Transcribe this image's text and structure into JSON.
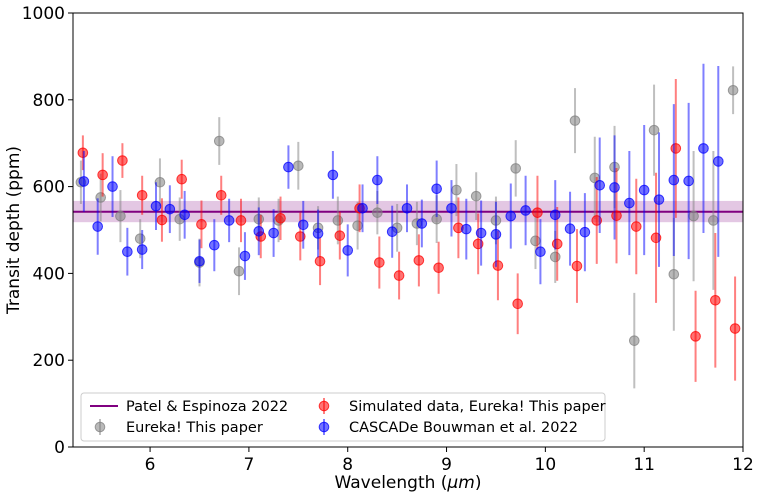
{
  "chart_data": {
    "type": "scatter",
    "xlabel": "Wavelength (",
    "xlabel_unit": "μm",
    "xlabel_close": ")",
    "ylabel": "Transit depth (ppm)",
    "xlim": [
      5.22,
      12.0
    ],
    "ylim": [
      0,
      1000
    ],
    "xticks": [
      6,
      7,
      8,
      9,
      10,
      11,
      12
    ],
    "yticks": [
      0,
      200,
      400,
      600,
      800,
      1000
    ],
    "grid": false,
    "legend_position": "lower-left",
    "reference_band": {
      "name": "Patel & Espinoza 2022",
      "value": 542,
      "lower": 518,
      "upper": 567,
      "color": "#800080"
    },
    "series": [
      {
        "name": "Eureka! This paper",
        "color": "#808080",
        "points": [
          [
            5.3,
            610,
            50
          ],
          [
            5.5,
            575,
            55
          ],
          [
            5.7,
            532,
            60
          ],
          [
            5.9,
            480,
            45
          ],
          [
            6.1,
            610,
            55
          ],
          [
            6.3,
            525,
            50
          ],
          [
            6.5,
            425,
            55
          ],
          [
            6.7,
            705,
            55
          ],
          [
            6.9,
            405,
            55
          ],
          [
            7.1,
            525,
            50
          ],
          [
            7.3,
            522,
            50
          ],
          [
            7.5,
            648,
            55
          ],
          [
            7.7,
            505,
            50
          ],
          [
            7.9,
            522,
            55
          ],
          [
            8.1,
            510,
            55
          ],
          [
            8.3,
            540,
            50
          ],
          [
            8.5,
            505,
            55
          ],
          [
            8.7,
            515,
            50
          ],
          [
            8.9,
            525,
            55
          ],
          [
            9.1,
            592,
            60
          ],
          [
            9.3,
            578,
            55
          ],
          [
            9.5,
            522,
            55
          ],
          [
            9.7,
            642,
            65
          ],
          [
            9.9,
            475,
            65
          ],
          [
            10.1,
            438,
            60
          ],
          [
            10.3,
            752,
            75
          ],
          [
            10.5,
            620,
            95
          ],
          [
            10.7,
            645,
            95
          ],
          [
            10.9,
            245,
            110
          ],
          [
            11.1,
            730,
            105
          ],
          [
            11.3,
            398,
            130
          ],
          [
            11.5,
            532,
            150
          ],
          [
            11.7,
            522,
            160
          ],
          [
            11.9,
            822,
            55
          ]
        ]
      },
      {
        "name": "Simulated data, Eureka! This paper",
        "color": "#ff0000",
        "points": [
          [
            5.32,
            678,
            40
          ],
          [
            5.52,
            627,
            50
          ],
          [
            5.72,
            660,
            40
          ],
          [
            5.92,
            580,
            45
          ],
          [
            6.12,
            523,
            50
          ],
          [
            6.32,
            617,
            45
          ],
          [
            6.52,
            513,
            55
          ],
          [
            6.72,
            580,
            45
          ],
          [
            6.92,
            522,
            50
          ],
          [
            7.12,
            485,
            50
          ],
          [
            7.32,
            527,
            50
          ],
          [
            7.52,
            485,
            55
          ],
          [
            7.72,
            428,
            55
          ],
          [
            7.92,
            487,
            55
          ],
          [
            8.12,
            550,
            55
          ],
          [
            8.32,
            425,
            60
          ],
          [
            8.52,
            395,
            55
          ],
          [
            8.72,
            430,
            60
          ],
          [
            8.92,
            413,
            60
          ],
          [
            9.12,
            505,
            70
          ],
          [
            9.32,
            468,
            70
          ],
          [
            9.52,
            418,
            80
          ],
          [
            9.72,
            330,
            70
          ],
          [
            9.92,
            540,
            85
          ],
          [
            10.12,
            468,
            85
          ],
          [
            10.32,
            417,
            85
          ],
          [
            10.52,
            522,
            100
          ],
          [
            10.72,
            533,
            110
          ],
          [
            10.92,
            508,
            110
          ],
          [
            11.12,
            482,
            150
          ],
          [
            11.32,
            688,
            160
          ],
          [
            11.52,
            255,
            105
          ],
          [
            11.72,
            338,
            155
          ],
          [
            11.92,
            273,
            120
          ]
        ]
      },
      {
        "name": "CASCADe Bouwman et al. 2022",
        "color": "#0000ff",
        "points": [
          [
            5.33,
            612,
            70
          ],
          [
            5.47,
            508,
            65
          ],
          [
            5.62,
            600,
            70
          ],
          [
            5.77,
            450,
            55
          ],
          [
            5.92,
            455,
            45
          ],
          [
            6.06,
            555,
            55
          ],
          [
            6.2,
            548,
            55
          ],
          [
            6.35,
            535,
            55
          ],
          [
            6.5,
            428,
            50
          ],
          [
            6.65,
            465,
            60
          ],
          [
            6.8,
            522,
            50
          ],
          [
            6.96,
            440,
            55
          ],
          [
            7.1,
            497,
            55
          ],
          [
            7.25,
            493,
            55
          ],
          [
            7.4,
            645,
            50
          ],
          [
            7.55,
            512,
            55
          ],
          [
            7.7,
            492,
            55
          ],
          [
            7.85,
            627,
            55
          ],
          [
            8.0,
            453,
            60
          ],
          [
            8.15,
            550,
            55
          ],
          [
            8.3,
            615,
            55
          ],
          [
            8.45,
            496,
            60
          ],
          [
            8.6,
            550,
            55
          ],
          [
            8.75,
            515,
            55
          ],
          [
            8.9,
            595,
            65
          ],
          [
            9.05,
            550,
            65
          ],
          [
            9.2,
            502,
            70
          ],
          [
            9.35,
            493,
            75
          ],
          [
            9.5,
            490,
            75
          ],
          [
            9.65,
            532,
            75
          ],
          [
            9.8,
            545,
            80
          ],
          [
            9.95,
            450,
            75
          ],
          [
            10.1,
            535,
            80
          ],
          [
            10.25,
            503,
            85
          ],
          [
            10.4,
            495,
            90
          ],
          [
            10.55,
            603,
            110
          ],
          [
            10.7,
            598,
            120
          ],
          [
            10.85,
            562,
            120
          ],
          [
            11.0,
            592,
            150
          ],
          [
            11.15,
            570,
            155
          ],
          [
            11.3,
            615,
            175
          ],
          [
            11.45,
            613,
            180
          ],
          [
            11.6,
            688,
            195
          ],
          [
            11.75,
            658,
            220
          ]
        ]
      }
    ]
  }
}
